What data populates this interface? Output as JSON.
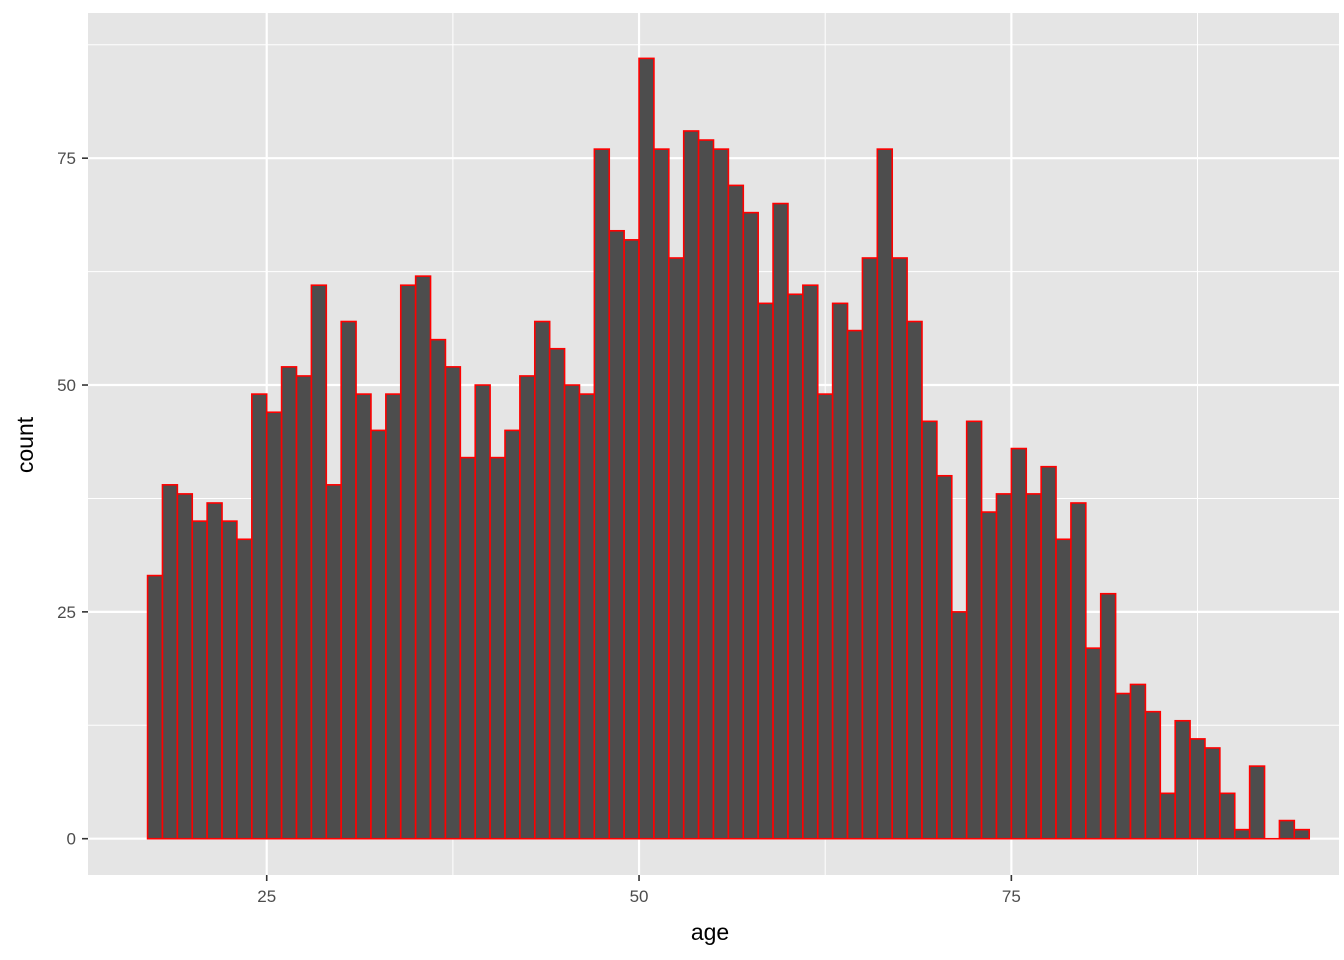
{
  "chart_data": {
    "type": "bar",
    "subtype": "histogram",
    "xlabel": "age",
    "ylabel": "count",
    "xlim": [
      13,
      97
    ],
    "ylim": [
      -4,
      91
    ],
    "x_ticks": [
      25,
      50,
      75
    ],
    "y_ticks": [
      0,
      25,
      50,
      75
    ],
    "grid": true,
    "legend": "none",
    "bin_start": 17,
    "bin_width": 1,
    "counts": [
      29,
      39,
      38,
      35,
      37,
      35,
      33,
      49,
      47,
      52,
      51,
      61,
      39,
      57,
      49,
      45,
      49,
      61,
      62,
      55,
      52,
      42,
      50,
      42,
      45,
      51,
      57,
      54,
      50,
      49,
      76,
      67,
      66,
      86,
      76,
      64,
      78,
      77,
      76,
      72,
      69,
      59,
      70,
      60,
      61,
      49,
      59,
      56,
      64,
      76,
      64,
      57,
      46,
      40,
      25,
      46,
      36,
      38,
      43,
      38,
      41,
      33,
      37,
      21,
      27,
      16,
      17,
      14,
      5,
      13,
      11,
      10,
      5,
      1,
      8,
      0,
      2,
      1
    ],
    "colors": {
      "panel_background": "#e5e5e5",
      "grid_major": "#ffffff",
      "bar_fill": "#4d4d4d",
      "bar_outline": "#ff0000"
    }
  }
}
